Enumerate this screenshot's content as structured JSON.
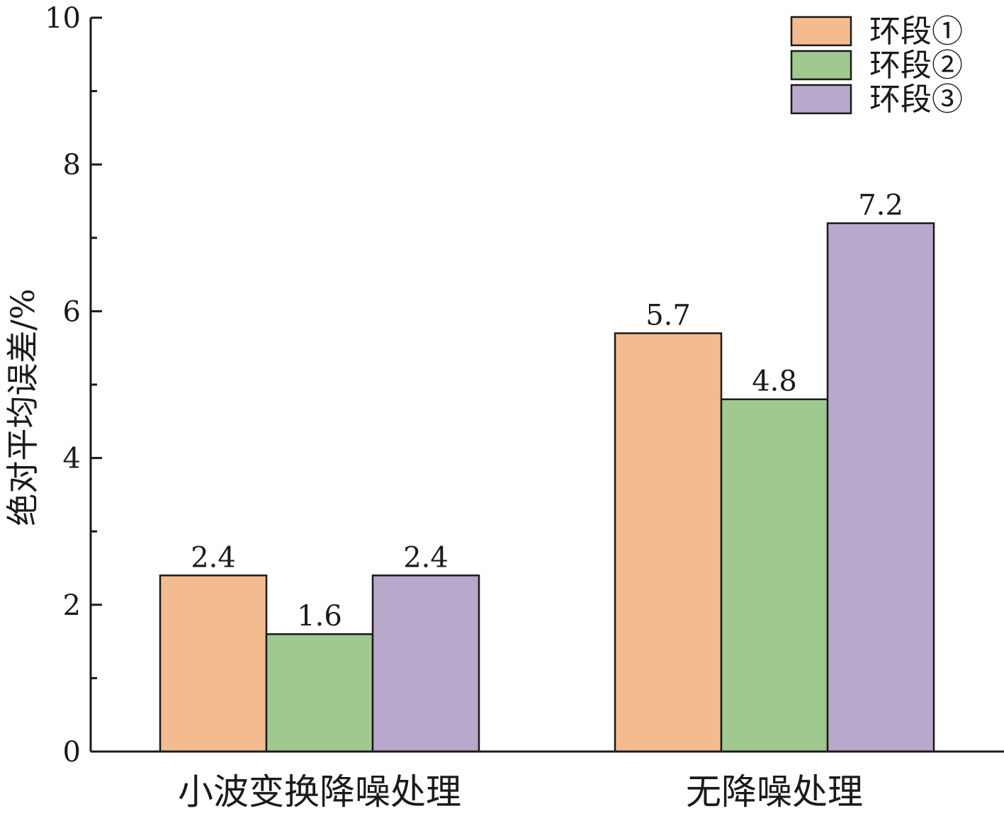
{
  "chart_data": {
    "type": "bar",
    "categories": [
      "小波变换降噪处理",
      "无降噪处理"
    ],
    "series": [
      {
        "name": "环段①",
        "values": [
          2.4,
          5.7
        ],
        "color": "#F4BC8E"
      },
      {
        "name": "环段②",
        "values": [
          1.6,
          4.8
        ],
        "color": "#A0C98F"
      },
      {
        "name": "环段③",
        "values": [
          2.4,
          7.2
        ],
        "color": "#B8A8CB"
      }
    ],
    "ylabel": "绝对平均误差/%",
    "ylim": [
      0,
      10
    ],
    "yticks_major": [
      0,
      2,
      4,
      6,
      8,
      10
    ],
    "yticks_minor": [
      1,
      3,
      5,
      7,
      9
    ],
    "grid": false,
    "legend_position": "top-right",
    "data_labels": [
      [
        "2.4",
        "1.6",
        "2.4"
      ],
      [
        "5.7",
        "4.8",
        "7.2"
      ]
    ]
  }
}
